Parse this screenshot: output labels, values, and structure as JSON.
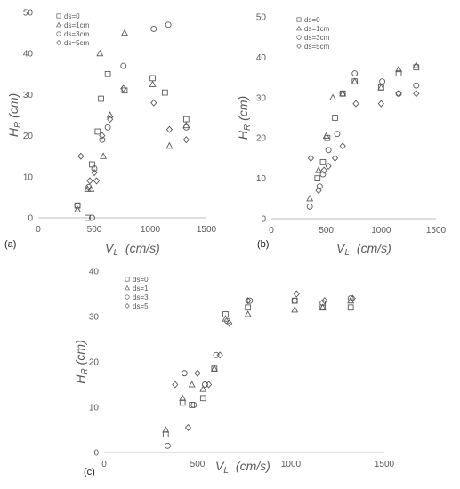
{
  "chart_data": [
    {
      "type": "scatter",
      "panel_label": "(a)",
      "xlabel_main": "V",
      "xlabel_sub": "L",
      "xlabel_unit": "(cm/s)",
      "ylabel_main": "H",
      "ylabel_sub": "R",
      "ylabel_unit": "(cm)",
      "xlim": [
        0,
        1500
      ],
      "ylim": [
        0,
        50
      ],
      "xticks": [
        0,
        500,
        1000,
        1500
      ],
      "yticks": [
        0,
        10,
        20,
        30,
        40,
        50
      ],
      "legend_position": "top-left",
      "series": [
        {
          "name": "ds=0",
          "marker": "square",
          "points": [
            [
              350,
              3
            ],
            [
              440,
              0
            ],
            [
              480,
              13
            ],
            [
              530,
              21
            ],
            [
              560,
              29
            ],
            [
              620,
              35
            ],
            [
              770,
              31
            ],
            [
              1020,
              34
            ],
            [
              1130,
              30.5
            ],
            [
              1320,
              24
            ]
          ]
        },
        {
          "name": "ds=1cm",
          "marker": "triangle",
          "points": [
            [
              350,
              2
            ],
            [
              440,
              7
            ],
            [
              470,
              7
            ],
            [
              550,
              40
            ],
            [
              580,
              15
            ],
            [
              640,
              25
            ],
            [
              770,
              45
            ],
            [
              1020,
              32.5
            ],
            [
              1170,
              17.5
            ],
            [
              1320,
              22.5
            ]
          ]
        },
        {
          "name": "ds=3cm",
          "marker": "circle",
          "points": [
            [
              350,
              3
            ],
            [
              450,
              7.5
            ],
            [
              480,
              0
            ],
            [
              500,
              12
            ],
            [
              570,
              19
            ],
            [
              620,
              22
            ],
            [
              760,
              37
            ],
            [
              1030,
              46
            ],
            [
              1160,
              47
            ],
            [
              1320,
              22
            ]
          ]
        },
        {
          "name": "ds=5cm",
          "marker": "diamond",
          "points": [
            [
              380,
              15
            ],
            [
              460,
              9
            ],
            [
              500,
              11
            ],
            [
              520,
              9
            ],
            [
              570,
              20
            ],
            [
              640,
              24
            ],
            [
              760,
              31.5
            ],
            [
              1030,
              28
            ],
            [
              1170,
              21.5
            ],
            [
              1320,
              19
            ]
          ]
        }
      ]
    },
    {
      "type": "scatter",
      "panel_label": "(b)",
      "xlabel_main": "V",
      "xlabel_sub": "L",
      "xlabel_unit": "(cm/s)",
      "ylabel_main": "H",
      "ylabel_sub": "R",
      "ylabel_unit": "(cm)",
      "xlim": [
        0,
        1500
      ],
      "ylim": [
        0,
        50
      ],
      "xticks": [
        0,
        500,
        1000,
        1500
      ],
      "yticks": [
        0,
        10,
        20,
        30,
        40,
        50
      ],
      "legend_position": "top-left",
      "series": [
        {
          "name": "ds=0",
          "marker": "square",
          "points": [
            [
              420,
              10
            ],
            [
              470,
              14
            ],
            [
              510,
              20
            ],
            [
              580,
              25
            ],
            [
              650,
              31
            ],
            [
              760,
              34
            ],
            [
              1000,
              32.5
            ],
            [
              1160,
              36
            ],
            [
              1320,
              37.5
            ]
          ]
        },
        {
          "name": "ds=1cm",
          "marker": "triangle",
          "points": [
            [
              350,
              5
            ],
            [
              430,
              12
            ],
            [
              500,
              20.5
            ],
            [
              560,
              30
            ],
            [
              650,
              31
            ],
            [
              760,
              34
            ],
            [
              1000,
              32.5
            ],
            [
              1160,
              37
            ],
            [
              1320,
              38
            ]
          ]
        },
        {
          "name": "ds=3cm",
          "marker": "circle",
          "points": [
            [
              350,
              3
            ],
            [
              440,
              8
            ],
            [
              470,
              11
            ],
            [
              520,
              17
            ],
            [
              600,
              21
            ],
            [
              650,
              31
            ],
            [
              760,
              36
            ],
            [
              1010,
              34
            ],
            [
              1160,
              31
            ],
            [
              1320,
              33
            ]
          ]
        },
        {
          "name": "ds=5cm",
          "marker": "diamond",
          "points": [
            [
              360,
              15
            ],
            [
              430,
              7
            ],
            [
              480,
              12
            ],
            [
              520,
              13
            ],
            [
              580,
              15
            ],
            [
              650,
              18
            ],
            [
              770,
              28.5
            ],
            [
              1000,
              28.5
            ],
            [
              1160,
              31
            ],
            [
              1320,
              31
            ]
          ]
        }
      ]
    },
    {
      "type": "scatter",
      "panel_label": "(c)",
      "xlabel_main": "V",
      "xlabel_sub": "L",
      "xlabel_unit": "(cm/s)",
      "ylabel_main": "H",
      "ylabel_sub": "R",
      "ylabel_unit": "(cm)",
      "xlim": [
        0,
        1500
      ],
      "ylim": [
        0,
        40
      ],
      "xticks": [
        0,
        500,
        1000,
        1500
      ],
      "yticks": [
        0,
        10,
        20,
        30,
        40
      ],
      "legend_position": "top-left",
      "series": [
        {
          "name": "ds=0",
          "marker": "square",
          "points": [
            [
              330,
              4
            ],
            [
              420,
              11
            ],
            [
              470,
              10.5
            ],
            [
              530,
              12
            ],
            [
              590,
              18.5
            ],
            [
              650,
              30.5
            ],
            [
              770,
              32
            ],
            [
              1020,
              33.5
            ],
            [
              1170,
              32
            ],
            [
              1320,
              32
            ]
          ]
        },
        {
          "name": "ds=1",
          "marker": "triangle",
          "points": [
            [
              330,
              5
            ],
            [
              420,
              12
            ],
            [
              470,
              15
            ],
            [
              530,
              14
            ],
            [
              590,
              18.5
            ],
            [
              650,
              29.5
            ],
            [
              770,
              30.5
            ],
            [
              1020,
              31.5
            ],
            [
              1170,
              32
            ],
            [
              1320,
              33.5
            ]
          ]
        },
        {
          "name": "ds=3",
          "marker": "circle",
          "points": [
            [
              340,
              1.5
            ],
            [
              430,
              17.5
            ],
            [
              480,
              10.5
            ],
            [
              540,
              15
            ],
            [
              600,
              21.5
            ],
            [
              660,
              29
            ],
            [
              780,
              33.5
            ],
            [
              1020,
              33.5
            ],
            [
              1170,
              33
            ],
            [
              1320,
              34
            ]
          ]
        },
        {
          "name": "ds=5",
          "marker": "diamond",
          "points": [
            [
              380,
              15
            ],
            [
              450,
              5.5
            ],
            [
              500,
              17.5
            ],
            [
              560,
              15
            ],
            [
              620,
              21.5
            ],
            [
              670,
              28.5
            ],
            [
              770,
              33.5
            ],
            [
              1030,
              35
            ],
            [
              1180,
              33.5
            ],
            [
              1330,
              34
            ]
          ]
        }
      ]
    }
  ]
}
